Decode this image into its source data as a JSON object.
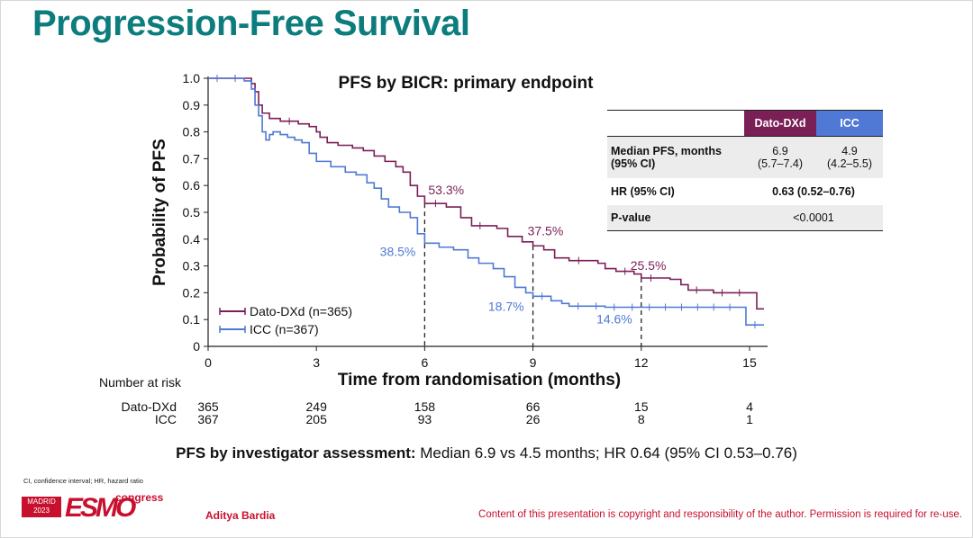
{
  "slide": {
    "title": "Progression-Free Survival",
    "footer_bold": "PFS by investigator assessment:",
    "footer_rest": " Median 6.9 vs 4.5 months; HR 0.64 (95% CI 0.53–0.76)",
    "abbrev_note": "CI, confidence interval; HR, hazard ratio",
    "presenter": "Aditya Bardia",
    "copyright": "Content of this presentation is copyright and responsibility of the author. Permission is required for re-use.",
    "logo": {
      "city": "MADRID",
      "year": "2023",
      "brand": "ESMO",
      "suffix": "congress"
    }
  },
  "table": {
    "col1": "Dato-DXd",
    "col2": "ICC",
    "rows": [
      {
        "label1": "Median PFS, months",
        "label2": "(95% CI)",
        "dato1": "6.9",
        "dato2": "(5.7–7.4)",
        "icc1": "4.9",
        "icc2": "(4.2–5.5)"
      },
      {
        "label": "HR (95% CI)",
        "value": "0.63 (0.52–0.76)"
      },
      {
        "label": "P-value",
        "value": "<0.0001"
      }
    ]
  },
  "colors": {
    "dato": "#7b1f57",
    "icc": "#4f79d4",
    "title": "#0c7c7c",
    "accent": "#c8102e"
  },
  "chart_data": {
    "type": "line",
    "title": "PFS by BICR: primary endpoint",
    "xlabel": "Time from randomisation (months)",
    "ylabel": "Probability of PFS",
    "xlim": [
      0,
      15.5
    ],
    "ylim": [
      0,
      1.0
    ],
    "xticks": [
      0,
      3,
      6,
      9,
      12,
      15
    ],
    "yticks": [
      0,
      0.1,
      0.2,
      0.3,
      0.4,
      0.5,
      0.6,
      0.7,
      0.8,
      0.9,
      1.0
    ],
    "series": [
      {
        "name": "Dato-DXd (n=365)",
        "color": "#7b1f57",
        "points": [
          [
            0,
            1.0
          ],
          [
            1.0,
            1.0
          ],
          [
            1.2,
            0.98
          ],
          [
            1.3,
            0.95
          ],
          [
            1.4,
            0.9
          ],
          [
            1.5,
            0.87
          ],
          [
            1.7,
            0.85
          ],
          [
            2.0,
            0.84
          ],
          [
            2.5,
            0.83
          ],
          [
            2.8,
            0.82
          ],
          [
            3.0,
            0.8
          ],
          [
            3.1,
            0.78
          ],
          [
            3.3,
            0.76
          ],
          [
            3.6,
            0.75
          ],
          [
            4.0,
            0.74
          ],
          [
            4.3,
            0.73
          ],
          [
            4.6,
            0.71
          ],
          [
            4.9,
            0.69
          ],
          [
            5.2,
            0.67
          ],
          [
            5.4,
            0.65
          ],
          [
            5.6,
            0.6
          ],
          [
            5.8,
            0.56
          ],
          [
            6.0,
            0.533
          ],
          [
            6.6,
            0.52
          ],
          [
            7.0,
            0.48
          ],
          [
            7.3,
            0.45
          ],
          [
            8.0,
            0.44
          ],
          [
            8.3,
            0.41
          ],
          [
            8.7,
            0.39
          ],
          [
            9.0,
            0.375
          ],
          [
            9.3,
            0.36
          ],
          [
            9.6,
            0.33
          ],
          [
            10.0,
            0.32
          ],
          [
            10.8,
            0.31
          ],
          [
            11.0,
            0.29
          ],
          [
            11.3,
            0.28
          ],
          [
            11.8,
            0.27
          ],
          [
            12.0,
            0.255
          ],
          [
            12.8,
            0.25
          ],
          [
            13.1,
            0.23
          ],
          [
            13.3,
            0.21
          ],
          [
            14.0,
            0.2
          ],
          [
            15.2,
            0.2
          ],
          [
            15.2,
            0.14
          ],
          [
            15.4,
            0.14
          ]
        ],
        "risk": [
          365,
          249,
          158,
          66,
          15,
          4
        ]
      },
      {
        "name": "ICC (n=367)",
        "color": "#4f79d4",
        "points": [
          [
            0,
            1.0
          ],
          [
            1.0,
            0.99
          ],
          [
            1.2,
            0.96
          ],
          [
            1.3,
            0.9
          ],
          [
            1.4,
            0.86
          ],
          [
            1.5,
            0.8
          ],
          [
            1.6,
            0.77
          ],
          [
            1.7,
            0.79
          ],
          [
            1.8,
            0.8
          ],
          [
            2.0,
            0.79
          ],
          [
            2.2,
            0.78
          ],
          [
            2.4,
            0.77
          ],
          [
            2.6,
            0.76
          ],
          [
            2.8,
            0.72
          ],
          [
            3.0,
            0.69
          ],
          [
            3.4,
            0.67
          ],
          [
            3.8,
            0.65
          ],
          [
            4.1,
            0.64
          ],
          [
            4.4,
            0.61
          ],
          [
            4.6,
            0.59
          ],
          [
            4.8,
            0.55
          ],
          [
            5.0,
            0.52
          ],
          [
            5.3,
            0.5
          ],
          [
            5.6,
            0.48
          ],
          [
            5.8,
            0.42
          ],
          [
            6.0,
            0.385
          ],
          [
            6.4,
            0.37
          ],
          [
            6.8,
            0.36
          ],
          [
            7.2,
            0.33
          ],
          [
            7.5,
            0.31
          ],
          [
            7.9,
            0.29
          ],
          [
            8.2,
            0.26
          ],
          [
            8.5,
            0.22
          ],
          [
            8.8,
            0.2
          ],
          [
            9.0,
            0.187
          ],
          [
            9.5,
            0.17
          ],
          [
            9.8,
            0.16
          ],
          [
            10.0,
            0.15
          ],
          [
            11.0,
            0.146
          ],
          [
            12.0,
            0.146
          ],
          [
            14.9,
            0.146
          ],
          [
            14.9,
            0.08
          ],
          [
            15.4,
            0.08
          ]
        ],
        "risk": [
          367,
          205,
          93,
          26,
          8,
          1
        ]
      }
    ],
    "annotations": [
      {
        "text": "53.3%",
        "x": 6,
        "y": 0.533,
        "series": "Dato-DXd"
      },
      {
        "text": "38.5%",
        "x": 6,
        "y": 0.385,
        "series": "ICC"
      },
      {
        "text": "37.5%",
        "x": 9,
        "y": 0.375,
        "series": "Dato-DXd"
      },
      {
        "text": "18.7%",
        "x": 9,
        "y": 0.187,
        "series": "ICC"
      },
      {
        "text": "25.5%",
        "x": 12,
        "y": 0.255,
        "series": "Dato-DXd"
      },
      {
        "text": "14.6%",
        "x": 12,
        "y": 0.146,
        "series": "ICC"
      }
    ],
    "legend": {
      "placement": "bottom-left",
      "entries": [
        "Dato-DXd (n=365)",
        "ICC (n=367)"
      ]
    },
    "risk_table": {
      "title": "Number at risk",
      "rows": [
        {
          "label": "Dato-DXd",
          "values": [
            365,
            249,
            158,
            66,
            15,
            4
          ]
        },
        {
          "label": "ICC",
          "values": [
            367,
            205,
            93,
            26,
            8,
            1
          ]
        }
      ]
    }
  }
}
